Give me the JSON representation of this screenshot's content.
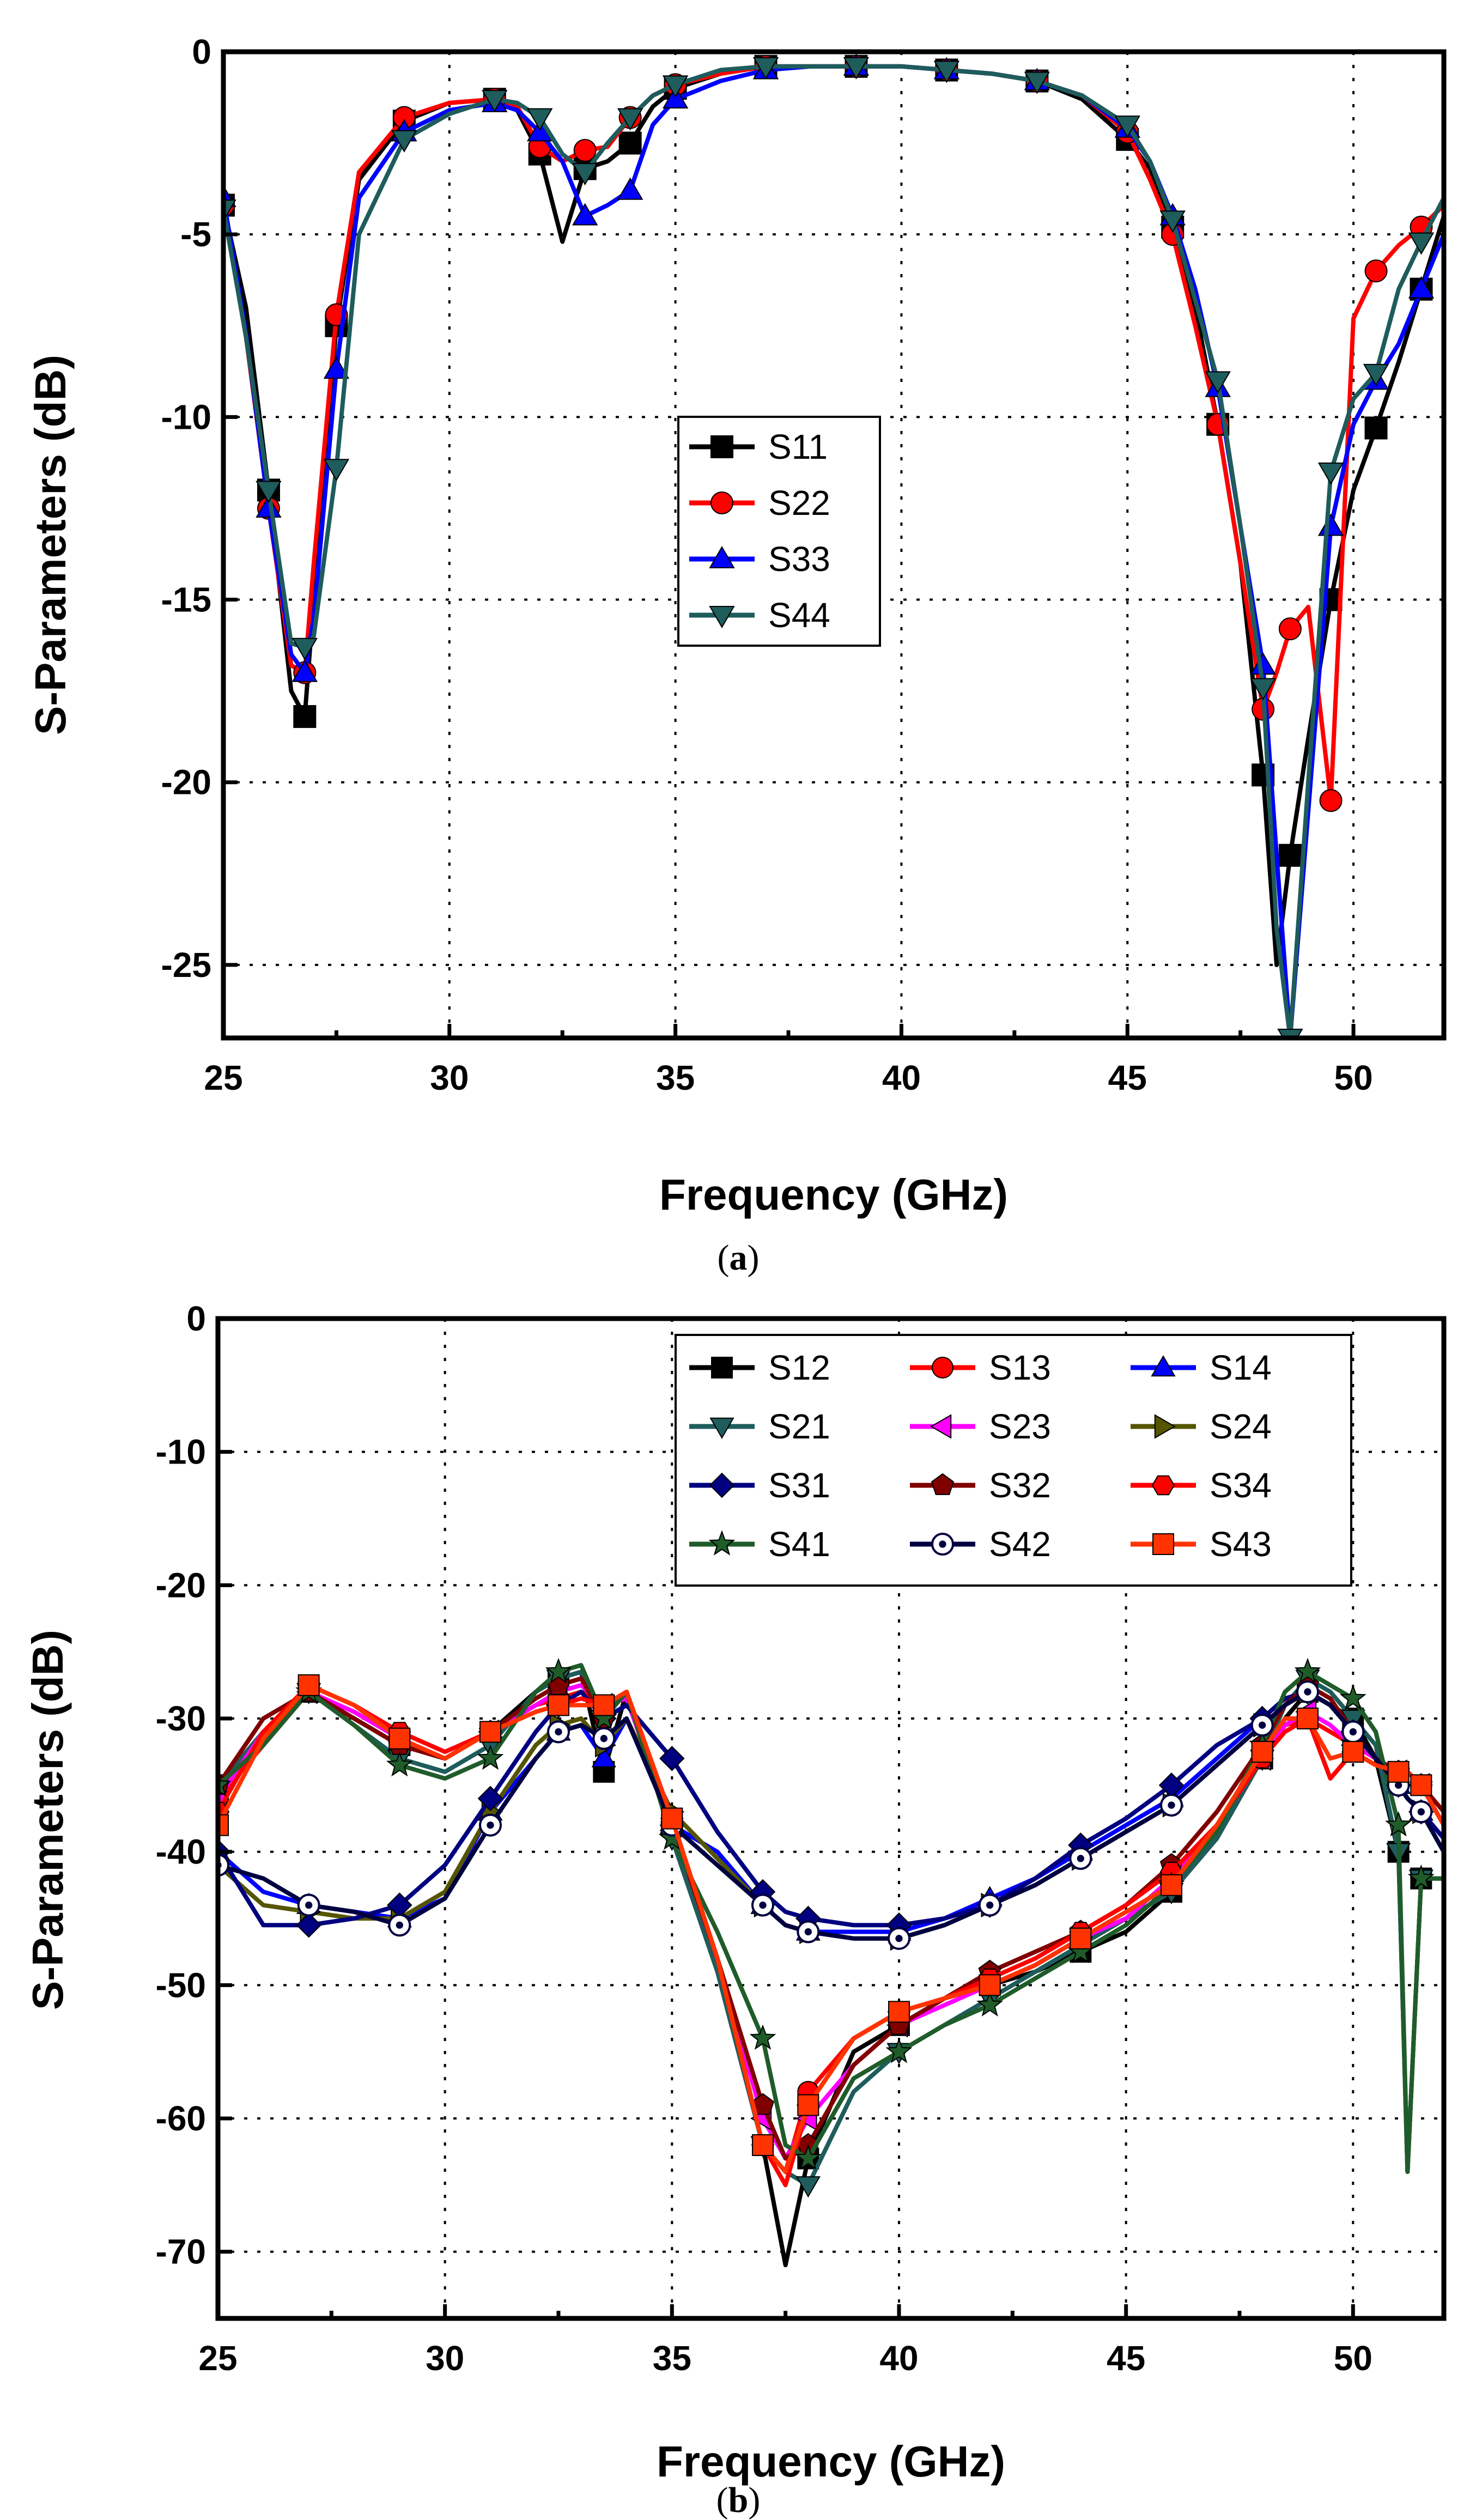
{
  "chart_data": [
    {
      "type": "line",
      "panel": "(a)",
      "caption_letter": "a",
      "xlabel": "Frequency (GHz)",
      "ylabel": "S-Parameters (dB)",
      "xlim": [
        25,
        52
      ],
      "ylim": [
        -27,
        0
      ],
      "xticks": [
        25,
        30,
        35,
        40,
        45,
        50
      ],
      "yticks": [
        0,
        -5,
        -10,
        -15,
        -20,
        -25
      ],
      "grid": true,
      "legend_position": "center",
      "x": [
        25,
        25.5,
        26,
        26.5,
        26.8,
        27,
        27.5,
        28,
        29,
        30,
        31,
        31.5,
        32,
        32.5,
        33,
        33.5,
        34,
        34.5,
        35,
        36,
        37,
        38,
        39,
        40,
        41,
        42,
        43,
        44,
        45,
        45.5,
        46,
        46.5,
        47,
        47.5,
        48,
        48.3,
        48.6,
        49,
        49.5,
        50,
        50.5,
        51,
        51.5,
        52
      ],
      "series": [
        {
          "name": "S11",
          "color": "#000000",
          "marker": "square",
          "values": [
            -4.2,
            -7,
            -12,
            -17.5,
            -18.2,
            -15,
            -7.5,
            -3.5,
            -1.9,
            -1.4,
            -1.3,
            -1.6,
            -2.8,
            -5.2,
            -3.2,
            -3.0,
            -2.5,
            -1.5,
            -1.0,
            -0.6,
            -0.4,
            -0.4,
            -0.4,
            -0.4,
            -0.5,
            -0.6,
            -0.8,
            -1.3,
            -2.4,
            -3.2,
            -4.8,
            -7,
            -10.2,
            -14,
            -19.8,
            -25,
            -22,
            -18.8,
            -15,
            -12,
            -10.3,
            -8.5,
            -6.5,
            -4.5
          ]
        },
        {
          "name": "S22",
          "color": "#ff0000",
          "marker": "circle",
          "values": [
            -4.2,
            -7.8,
            -12.5,
            -16.8,
            -17,
            -14,
            -7.2,
            -3.3,
            -1.8,
            -1.4,
            -1.3,
            -1.5,
            -2.6,
            -3.0,
            -2.7,
            -2.6,
            -1.8,
            -1.2,
            -0.9,
            -0.6,
            -0.4,
            -0.4,
            -0.4,
            -0.4,
            -0.5,
            -0.6,
            -0.8,
            -1.2,
            -2.2,
            -3.5,
            -5,
            -7.5,
            -10.2,
            -14,
            -18,
            -17,
            -15.8,
            -15.2,
            -20.5,
            -7.3,
            -6,
            -5.3,
            -4.8,
            -4.2
          ]
        },
        {
          "name": "S33",
          "color": "#0000ff",
          "marker": "triangle-up",
          "values": [
            -4,
            -7.7,
            -12.5,
            -16.5,
            -17,
            -15.5,
            -8.7,
            -4,
            -2.2,
            -1.6,
            -1.4,
            -1.6,
            -2.2,
            -3.0,
            -4.5,
            -4.2,
            -3.8,
            -2.0,
            -1.3,
            -0.8,
            -0.5,
            -0.4,
            -0.4,
            -0.4,
            -0.5,
            -0.6,
            -0.8,
            -1.2,
            -2.1,
            -3.0,
            -4.5,
            -6.5,
            -9.2,
            -13,
            -16.8,
            -22,
            -27,
            -20.8,
            -13,
            -10.2,
            -9.0,
            -8.0,
            -6.5,
            -5.0
          ]
        },
        {
          "name": "S44",
          "color": "#1f5c5c",
          "marker": "triangle-down",
          "values": [
            -4.3,
            -7.8,
            -12,
            -16.2,
            -16.3,
            -16,
            -11.4,
            -5,
            -2.4,
            -1.7,
            -1.3,
            -1.4,
            -1.8,
            -2.8,
            -3.3,
            -2.5,
            -1.8,
            -1.2,
            -0.9,
            -0.5,
            -0.4,
            -0.4,
            -0.4,
            -0.4,
            -0.5,
            -0.6,
            -0.8,
            -1.2,
            -2.0,
            -3.0,
            -4.6,
            -6.8,
            -9.0,
            -13,
            -17.4,
            -24,
            -27,
            -20,
            -11.5,
            -9.5,
            -8.8,
            -6.5,
            -5.2,
            -4.0
          ]
        }
      ]
    },
    {
      "type": "line",
      "panel": "(b)",
      "caption_letter": "b",
      "xlabel": "Frequency (GHz)",
      "ylabel": "S-Parameters (dB)",
      "xlim": [
        25,
        52
      ],
      "ylim": [
        -75,
        0
      ],
      "xticks": [
        25,
        30,
        35,
        40,
        45,
        50
      ],
      "yticks": [
        0,
        -10,
        -20,
        -30,
        -40,
        -50,
        -60,
        -70
      ],
      "grid": true,
      "legend_position": "top-right",
      "x": [
        25,
        26,
        27,
        28,
        29,
        30,
        31,
        32,
        32.5,
        33,
        33.5,
        34,
        35,
        36,
        37,
        37.5,
        38,
        39,
        40,
        41,
        42,
        43,
        44,
        45,
        46,
        47,
        48,
        48.5,
        49,
        49.5,
        50,
        50.5,
        51,
        51.2,
        51.5,
        52
      ],
      "series": [
        {
          "name": "S12",
          "color": "#000000",
          "marker": "square",
          "group": "isolation",
          "values": [
            -35,
            -31,
            -28,
            -30,
            -32,
            -33,
            -31,
            -28,
            -27,
            -26.5,
            -34,
            -28,
            -38,
            -48,
            -62,
            -71,
            -63,
            -55,
            -53,
            -51,
            -50,
            -49,
            -47.5,
            -46,
            -43,
            -39,
            -33,
            -30,
            -28,
            -29,
            -30,
            -33,
            -40,
            -64,
            -42,
            -42
          ]
        },
        {
          "name": "S13",
          "color": "#ff0000",
          "marker": "circle",
          "group": "isolation",
          "values": [
            -36,
            -32,
            -28,
            -29.5,
            -31.5,
            -33,
            -31,
            -29,
            -28.5,
            -28,
            -29,
            -28.5,
            -38,
            -48,
            -62,
            -64,
            -58,
            -54,
            -52,
            -51,
            -50,
            -48.5,
            -46.5,
            -45,
            -42,
            -38,
            -33,
            -30.5,
            -30,
            -31,
            -32,
            -33,
            -34,
            -34,
            -35,
            -38
          ]
        },
        {
          "name": "S14",
          "color": "#0000ff",
          "marker": "triangle-up",
          "group": "corner",
          "values": [
            -40,
            -43,
            -44,
            -44.5,
            -45,
            -43.5,
            -37,
            -33,
            -31,
            -30.5,
            -33,
            -30,
            -38,
            -40,
            -44,
            -45.5,
            -46,
            -46,
            -46,
            -45,
            -43.5,
            -42,
            -40,
            -38,
            -36,
            -33,
            -30,
            -28.5,
            -28,
            -29,
            -31,
            -33,
            -35,
            -36,
            -37,
            -39
          ]
        },
        {
          "name": "S21",
          "color": "#1f5c5c",
          "marker": "triangle-down",
          "group": "isolation",
          "values": [
            -35,
            -31,
            -28,
            -30.5,
            -33,
            -34,
            -32,
            -28,
            -27,
            -26.5,
            -30,
            -28,
            -39,
            -49,
            -62,
            -64,
            -65,
            -58,
            -55,
            -53,
            -51,
            -49,
            -47,
            -45,
            -43,
            -39,
            -33,
            -29,
            -27,
            -28,
            -30,
            -32,
            -40,
            -64,
            -42,
            -42
          ]
        },
        {
          "name": "S23",
          "color": "#ff00ff",
          "marker": "triangle-left",
          "group": "isolation",
          "values": [
            -36,
            -31,
            -28,
            -29.5,
            -31.5,
            -33,
            -31,
            -29,
            -28,
            -27.5,
            -29,
            -28.5,
            -38,
            -48,
            -60,
            -63,
            -60,
            -56,
            -53,
            -51.5,
            -50,
            -48.5,
            -46.5,
            -45,
            -42,
            -38,
            -33,
            -30.5,
            -29.5,
            -30.5,
            -32,
            -33,
            -34,
            -34,
            -35,
            -38
          ]
        },
        {
          "name": "S24",
          "color": "#555500",
          "marker": "triangle-right",
          "group": "corner",
          "values": [
            -41,
            -44,
            -44.5,
            -45,
            -45,
            -43,
            -37,
            -32,
            -30.5,
            -30,
            -32,
            -30,
            -37,
            -40.5,
            -44,
            -45.5,
            -46,
            -46.5,
            -46.5,
            -45.5,
            -44,
            -42.5,
            -40.5,
            -38.5,
            -36.5,
            -33.5,
            -30.5,
            -29,
            -28,
            -29,
            -31,
            -33,
            -35,
            -36,
            -37,
            -40
          ]
        },
        {
          "name": "S31",
          "color": "#000080",
          "marker": "diamond",
          "group": "corner",
          "values": [
            -40,
            -45.5,
            -45.5,
            -45,
            -44,
            -41,
            -36,
            -31,
            -29,
            -28,
            -30,
            -29,
            -33,
            -38.5,
            -43,
            -44.5,
            -45,
            -45.5,
            -45.5,
            -45,
            -44,
            -42,
            -39.5,
            -37.5,
            -35,
            -32,
            -30,
            -28.5,
            -28,
            -29,
            -31,
            -33,
            -35,
            -36,
            -37,
            -39
          ]
        },
        {
          "name": "S32",
          "color": "#800000",
          "marker": "pentagon",
          "group": "isolation",
          "values": [
            -35,
            -30,
            -28,
            -30,
            -32,
            -33,
            -31,
            -28.5,
            -27.5,
            -27,
            -30,
            -28,
            -38,
            -48,
            -59,
            -63,
            -62,
            -56,
            -53,
            -51,
            -49,
            -47.5,
            -46,
            -44,
            -41,
            -37,
            -32,
            -29,
            -27.5,
            -28.5,
            -31,
            -33,
            -34,
            -34,
            -35,
            -37
          ]
        },
        {
          "name": "S34",
          "color": "#ff0000",
          "marker": "hexagon",
          "group": "isolation",
          "values": [
            -37,
            -31,
            -27.5,
            -29,
            -31,
            -32.5,
            -31,
            -29.5,
            -29,
            -28.5,
            -29,
            -28,
            -37.5,
            -48,
            -62,
            -65,
            -59,
            -54,
            -52,
            -51,
            -49.5,
            -48,
            -46,
            -44,
            -41.5,
            -38,
            -33,
            -31,
            -30,
            -34.5,
            -32.5,
            -33.5,
            -34,
            -34,
            -35,
            -38
          ]
        },
        {
          "name": "S41",
          "color": "#1f5c2a",
          "marker": "star",
          "group": "isolation",
          "values": [
            -35,
            -32,
            -28,
            -30.5,
            -33.5,
            -34.5,
            -33,
            -28,
            -26.5,
            -26,
            -30,
            -28,
            -39,
            -46,
            -54,
            -62,
            -63,
            -57,
            -55,
            -53,
            -51.5,
            -49.5,
            -47.5,
            -45.5,
            -42.5,
            -38.5,
            -32,
            -28,
            -26.5,
            -27.5,
            -28.5,
            -31,
            -38,
            -64,
            -42,
            -42
          ]
        },
        {
          "name": "S42",
          "color": "#000040",
          "marker": "circle-dot",
          "group": "corner",
          "values": [
            -41,
            -42,
            -44,
            -44.5,
            -45.5,
            -43.5,
            -38,
            -33,
            -31,
            -30.5,
            -31.5,
            -30,
            -38,
            -41,
            -44,
            -45.5,
            -46,
            -46.5,
            -46.5,
            -45.5,
            -44,
            -42.5,
            -40.5,
            -38.5,
            -36.5,
            -33.5,
            -30.5,
            -29,
            -28,
            -29,
            -31,
            -33,
            -35,
            -36,
            -37,
            -40
          ]
        },
        {
          "name": "S43",
          "color": "#ff3300",
          "marker": "square",
          "group": "isolation",
          "values": [
            -38,
            -31.5,
            -27.5,
            -29,
            -31.5,
            -33,
            -31,
            -29.5,
            -29,
            -29,
            -29,
            -28,
            -37.5,
            -48,
            -62,
            -64,
            -59,
            -54,
            -52,
            -51,
            -50,
            -48.5,
            -46.5,
            -44.5,
            -42.5,
            -38,
            -32.5,
            -30,
            -30,
            -33,
            -32.5,
            -33.5,
            -34,
            -34,
            -35,
            -38
          ]
        }
      ]
    }
  ]
}
